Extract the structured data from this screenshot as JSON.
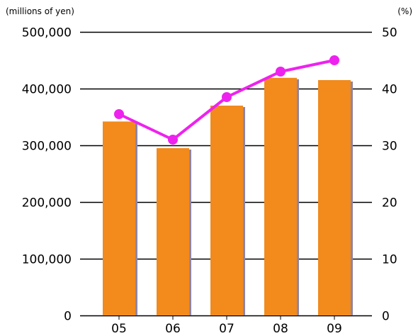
{
  "chart_data": {
    "type": "bar",
    "categories": [
      "05",
      "06",
      "07",
      "08",
      "09"
    ],
    "left_unit_label": "(millions of yen)",
    "right_unit_label": "(%)",
    "y_left": {
      "ylim": [
        0,
        500000
      ],
      "ticks": [
        0,
        100000,
        200000,
        300000,
        400000,
        500000
      ],
      "tick_labels": [
        "0",
        "100,000",
        "200,000",
        "300,000",
        "400,000",
        "500,000"
      ]
    },
    "y_right": {
      "ylim": [
        0,
        50
      ],
      "ticks": [
        0,
        10,
        20,
        30,
        40,
        50
      ],
      "tick_labels": [
        "0",
        "10",
        "20",
        "30",
        "40",
        "50"
      ]
    },
    "grid": true,
    "series": [
      {
        "type": "bar",
        "axis": "left",
        "color": "#f28a1c",
        "shadow_color": "#8c86a8",
        "values": [
          342000,
          295000,
          370000,
          419000,
          415000
        ]
      },
      {
        "type": "line",
        "axis": "right",
        "color": "#ee22ee",
        "values": [
          35.5,
          31.0,
          38.5,
          43.0,
          45.0
        ]
      }
    ]
  }
}
